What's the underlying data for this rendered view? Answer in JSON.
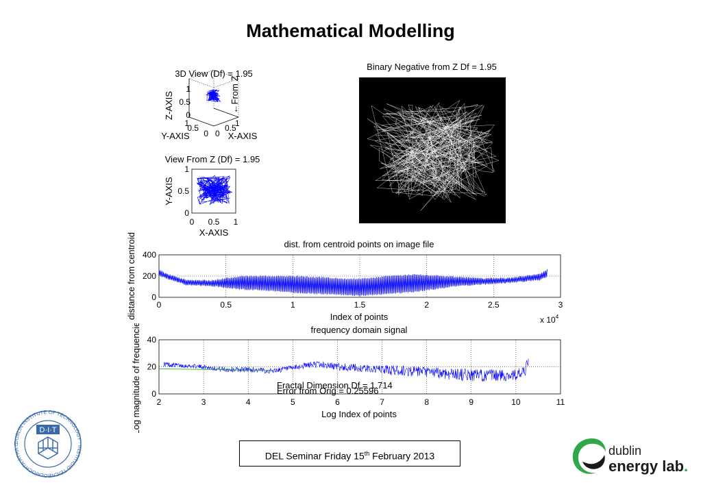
{
  "slide": {
    "title": "Mathematical Modelling",
    "footer": {
      "prefix": "DEL Seminar Friday 15",
      "sup": "th",
      "suffix": " February 2013"
    },
    "logos": {
      "dit_ring": "DUBLIN INSTITUTE OF TECHNOLOGY · INSTITIÚID TEICNEOLAÍOCHTA ÁTHA CLIATH",
      "dit_abbr": "D·I·T",
      "del_line1": "dublin",
      "del_line2": "energy lab",
      "del_dot": ".",
      "accent_green": "#2ea84a",
      "accent_dark": "#1a1a1a"
    }
  },
  "chart_data": [
    {
      "type": "scatter",
      "title": "3D View (Df) = 1.95",
      "xlabel": "X-AXIS",
      "ylabel": "Y-AXIS",
      "zlabel": "Z-AXIS",
      "side_label": "←From Z",
      "xticks": [
        "0",
        "0.5",
        "1"
      ],
      "yticks": [
        "1",
        "0.5",
        "0"
      ],
      "zticks": [
        "1",
        "0.5",
        "0"
      ],
      "color": "#0000ff",
      "x": [
        0.42,
        0.55,
        0.38,
        0.61,
        0.47,
        0.52,
        0.33,
        0.58,
        0.45,
        0.64,
        0.4,
        0.56,
        0.49,
        0.36,
        0.6,
        0.44,
        0.53,
        0.39,
        0.62,
        0.48,
        0.57,
        0.35,
        0.51,
        0.43
      ],
      "y": [
        0.51,
        0.44,
        0.58,
        0.47,
        0.62,
        0.4,
        0.55,
        0.52,
        0.37,
        0.59,
        0.46,
        0.63,
        0.42,
        0.54,
        0.49,
        0.35,
        0.57,
        0.61,
        0.45,
        0.53,
        0.38,
        0.5,
        0.6,
        0.48
      ],
      "z": [
        0.55,
        0.62,
        0.48,
        0.7,
        0.58,
        0.45,
        0.66,
        0.52,
        0.6,
        0.47,
        0.68,
        0.54,
        0.63,
        0.5,
        0.57,
        0.65,
        0.49,
        0.61,
        0.53,
        0.67,
        0.46,
        0.59,
        0.64,
        0.51
      ]
    },
    {
      "type": "line",
      "title": "View From Z (Df) = 1.95",
      "xlabel": "X-AXIS",
      "ylabel": "Y-AXIS",
      "xlim": [
        0,
        1
      ],
      "ylim": [
        0,
        1
      ],
      "xticks": [
        "0",
        "0.5",
        "1"
      ],
      "yticks": [
        "0",
        "0.5",
        "1"
      ],
      "color": "#0000ff",
      "x": [
        0.32,
        0.71,
        0.18,
        0.55,
        0.87,
        0.26,
        0.63,
        0.41,
        0.79,
        0.12,
        0.58,
        0.35,
        0.92,
        0.47,
        0.22,
        0.68,
        0.39,
        0.83,
        0.15,
        0.52,
        0.74,
        0.29,
        0.61,
        0.44,
        0.88,
        0.2,
        0.57,
        0.36,
        0.76,
        0.49,
        0.11,
        0.66,
        0.31,
        0.85,
        0.43,
        0.6,
        0.25,
        0.72,
        0.53,
        0.38
      ],
      "y": [
        0.55,
        0.38,
        0.72,
        0.26,
        0.61,
        0.44,
        0.83,
        0.19,
        0.52,
        0.67,
        0.33,
        0.78,
        0.47,
        0.58,
        0.29,
        0.7,
        0.41,
        0.63,
        0.5,
        0.86,
        0.36,
        0.59,
        0.24,
        0.75,
        0.45,
        0.62,
        0.31,
        0.8,
        0.42,
        0.56,
        0.69,
        0.35,
        0.74,
        0.48,
        0.21,
        0.65,
        0.53,
        0.4,
        0.77,
        0.57
      ]
    },
    {
      "type": "line",
      "title": "Binary Negative from Z Df = 1.95",
      "background": "#000000",
      "color": "#ffffff",
      "x": [
        0.35,
        0.78,
        0.12,
        0.6,
        0.91,
        0.27,
        0.48,
        0.83,
        0.05,
        0.66,
        0.4,
        0.95,
        0.18,
        0.55,
        0.72,
        0.31,
        0.88,
        0.09,
        0.63,
        0.44,
        0.79,
        0.22,
        0.51,
        0.97,
        0.37,
        0.69,
        0.14,
        0.58,
        0.85,
        0.29,
        0.46,
        0.75,
        0.03,
        0.62,
        0.41,
        0.9,
        0.19,
        0.53,
        0.81,
        0.34
      ],
      "y": [
        0.41,
        0.28,
        0.63,
        0.52,
        0.35,
        0.71,
        0.18,
        0.59,
        0.46,
        0.82,
        0.25,
        0.54,
        0.69,
        0.33,
        0.77,
        0.42,
        0.61,
        0.3,
        0.87,
        0.49,
        0.21,
        0.66,
        0.38,
        0.57,
        0.74,
        0.14,
        0.51,
        0.85,
        0.36,
        0.6,
        0.45,
        0.79,
        0.27,
        0.68,
        0.93,
        0.39,
        0.56,
        0.72,
        0.23,
        0.48
      ]
    },
    {
      "type": "line",
      "title": "dist. from centroid points on image file",
      "xlabel": "Index of points",
      "ylabel": "distance from centroid",
      "xlim": [
        0,
        3
      ],
      "ylim": [
        0,
        400
      ],
      "xticks": [
        "0",
        "0.5",
        "1",
        "1.5",
        "2",
        "2.5",
        "3"
      ],
      "yticks": [
        "0",
        "200",
        "400"
      ],
      "x_multiplier": "x 10",
      "x_multiplier_exp": "4",
      "color": "#0000ff",
      "envelope": {
        "x": [
          0,
          0.05,
          0.2,
          0.4,
          0.6,
          0.8,
          1.0,
          1.2,
          1.4,
          1.5,
          1.7,
          1.9,
          2.0,
          2.2,
          2.4,
          2.6,
          2.75,
          2.85,
          2.9
        ],
        "high": [
          270,
          230,
          170,
          165,
          205,
          205,
          205,
          195,
          180,
          180,
          205,
          220,
          215,
          200,
          185,
          185,
          210,
          230,
          265
        ],
        "low": [
          200,
          175,
          110,
          100,
          70,
          60,
          40,
          25,
          15,
          10,
          25,
          45,
          60,
          95,
          115,
          130,
          145,
          160,
          185
        ]
      }
    },
    {
      "type": "line",
      "title": "frequency domain signal",
      "xlabel": "Log Index of points",
      "ylabel": "Log magnitude of frequencies",
      "xlim": [
        2,
        11
      ],
      "ylim": [
        0,
        40
      ],
      "xticks": [
        "2",
        "3",
        "4",
        "5",
        "6",
        "7",
        "8",
        "9",
        "10",
        "11"
      ],
      "yticks": [
        "0",
        "20",
        "40"
      ],
      "annotations": [
        "Fractal Dimension Df = 1.714",
        "Error from Orig = 0.25596"
      ],
      "series": [
        {
          "color": "#0000ff",
          "x": [
            2.1,
            2.5,
            3.0,
            3.5,
            4.0,
            4.5,
            5.0,
            5.3,
            5.5,
            5.8,
            6.0,
            6.5,
            7.0,
            7.5,
            8.0,
            8.5,
            9.0,
            9.5,
            10.0,
            10.2,
            10.28
          ],
          "y": [
            22,
            21,
            20,
            18,
            18,
            17,
            19,
            21,
            22,
            21,
            20,
            19,
            18,
            17,
            16,
            15,
            14,
            13.5,
            14,
            16,
            25
          ],
          "spread": [
            2,
            1.5,
            1.5,
            2,
            2,
            2,
            2,
            2.5,
            2.5,
            2.5,
            3,
            3,
            3,
            3,
            3,
            3.5,
            3.5,
            3.5,
            3.5,
            3.5,
            3
          ]
        },
        {
          "color": "#00aa00",
          "x": [
            2.0,
            4.5
          ],
          "y": [
            18.5,
            17.5
          ]
        }
      ]
    }
  ]
}
